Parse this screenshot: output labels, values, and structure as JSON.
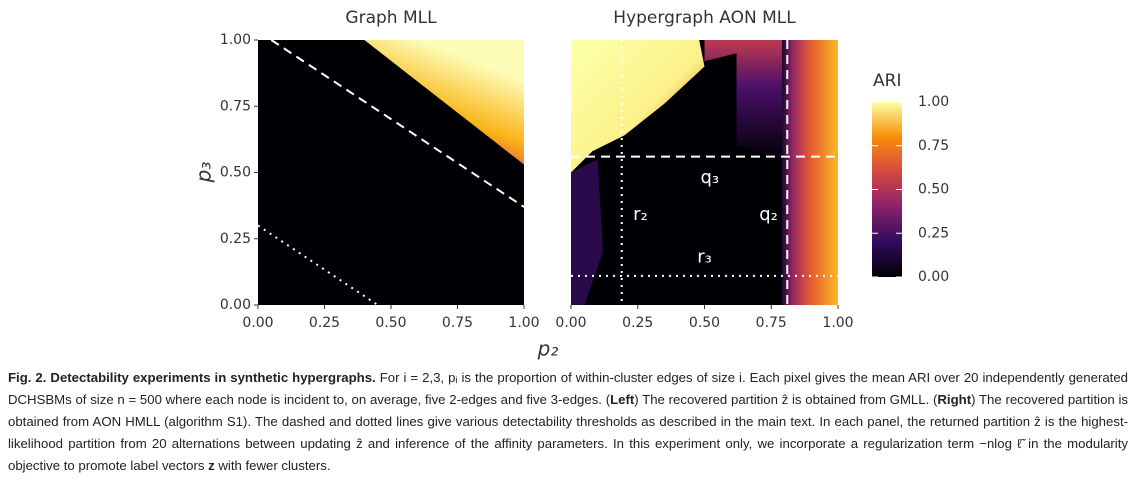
{
  "chart_data": [
    {
      "type": "heatmap",
      "title": "Graph MLL",
      "xlabel": "p₂",
      "ylabel": "p₃",
      "xlim": [
        0,
        1
      ],
      "ylim": [
        0,
        1
      ],
      "xticks": [
        {
          "value": 0,
          "label": "0.00"
        },
        {
          "value": 0.25,
          "label": "0.25"
        },
        {
          "value": 0.5,
          "label": "0.50"
        },
        {
          "value": 0.75,
          "label": "0.75"
        },
        {
          "value": 1,
          "label": "1.00"
        }
      ],
      "yticks": [
        {
          "value": 0,
          "label": "0.00"
        },
        {
          "value": 0.25,
          "label": "0.25"
        },
        {
          "value": 0.5,
          "label": "0.50"
        },
        {
          "value": 0.75,
          "label": "0.75"
        },
        {
          "value": 1,
          "label": "1.00"
        }
      ]
    },
    {
      "type": "heatmap",
      "title": "Hypergraph AON MLL",
      "xlim": [
        0,
        1
      ],
      "ylim": [
        0,
        1
      ],
      "xticks": [
        {
          "value": 0,
          "label": "0.00"
        },
        {
          "value": 0.25,
          "label": "0.25"
        },
        {
          "value": 0.5,
          "label": "0.50"
        },
        {
          "value": 0.75,
          "label": "0.75"
        },
        {
          "value": 1,
          "label": "1.00"
        }
      ],
      "annotations": [
        "q₃",
        "r₂",
        "q₂",
        "r₃"
      ],
      "colorbar": {
        "label": "ARI",
        "lim": [
          0,
          1
        ],
        "ticks": [
          {
            "value": 0,
            "label": "0.00"
          },
          {
            "value": 0.25,
            "label": "0.25"
          },
          {
            "value": 0.5,
            "label": "0.50"
          },
          {
            "value": 0.75,
            "label": "0.75"
          },
          {
            "value": 1,
            "label": "1.00"
          }
        ]
      }
    }
  ],
  "caption": [
    {
      "text": "Fig. 2. Detectability experiments in synthetic hypergraphs.",
      "bold": true
    },
    {
      "text": " For i = 2,3, pᵢ is the proportion of within-cluster edges of size i. Each pixel gives the mean ARI over 20 independently generated DCHSBMs of size n = 500 where each node is incident to, on average, five 2-edges and five 3-edges. (",
      "bold": false
    },
    {
      "text": "Left",
      "bold": true
    },
    {
      "text": ") The recovered partition ẑ is obtained from GMLL. (",
      "bold": false
    },
    {
      "text": "Right",
      "bold": true
    },
    {
      "text": ") The recovered partition is obtained from AON HMLL (algorithm S1). The dashed and dotted lines give various detectability thresholds as described in the main text. In each panel, the returned partition ẑ is the highest-likelihood partition from 20 alternations between updating ẑ and inference of the affinity parameters. In this experiment only, we incorporate a regularization term −nlog ℓ̃ in the modularity objective to promote label vectors ",
      "bold": false
    },
    {
      "text": "z",
      "bold": true
    },
    {
      "text": " with fewer clusters.",
      "bold": false
    }
  ]
}
